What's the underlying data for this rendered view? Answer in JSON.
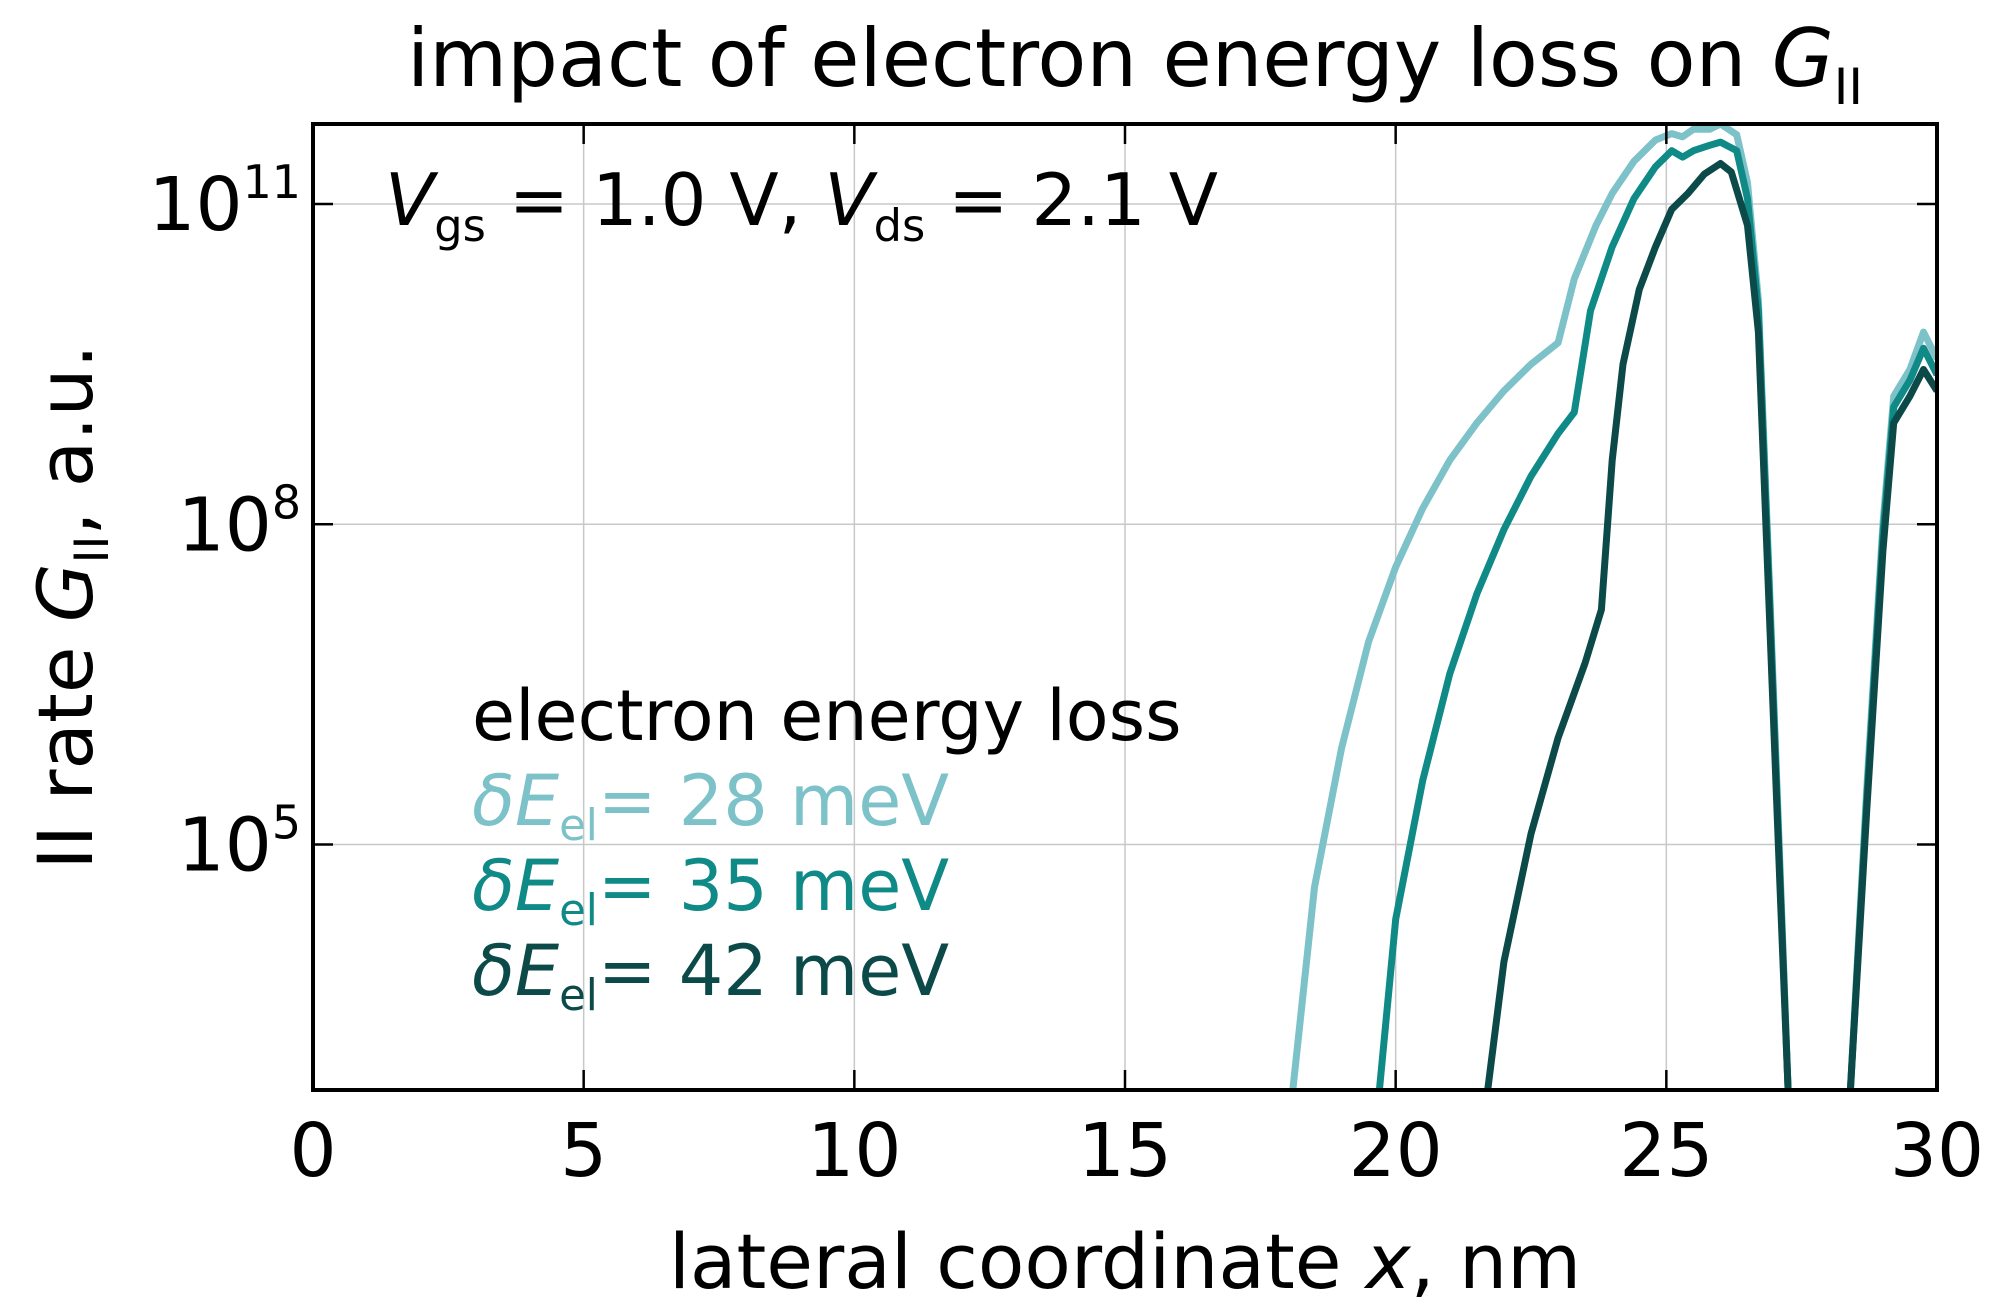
{
  "chart_data": {
    "type": "line",
    "title": {
      "prefix": "impact of electron energy loss on ",
      "symbol": "G",
      "symbol_sub": "II"
    },
    "annotation": {
      "vgs_symbol": "V",
      "vgs_sub": "gs",
      "vgs_value": " = 1.0 V, ",
      "vds_symbol": "V",
      "vds_sub": "ds",
      "vds_value": " = 2.1 V"
    },
    "xlabel": {
      "prefix": "lateral coordinate ",
      "symbol": "x",
      "suffix": ", nm"
    },
    "ylabel": {
      "prefix": "II rate ",
      "symbol": "G",
      "symbol_sub": "II",
      "suffix": ", a.u."
    },
    "x_scale": "linear",
    "y_scale": "log",
    "xlim": [
      0,
      30
    ],
    "ylim_log10": [
      2.7,
      11.75
    ],
    "x_ticks": [
      0,
      5,
      10,
      15,
      20,
      25,
      30
    ],
    "x_tick_labels": [
      "0",
      "5",
      "10",
      "15",
      "20",
      "25",
      "30"
    ],
    "y_ticks_log10": [
      5,
      8,
      11
    ],
    "y_tick_labels": [
      {
        "base": "10",
        "exp": "5"
      },
      {
        "base": "10",
        "exp": "8"
      },
      {
        "base": "10",
        "exp": "11"
      }
    ],
    "grid": true,
    "legend": {
      "title": "electron energy loss",
      "placement": "lower-left"
    },
    "series": [
      {
        "name": "δE_el = 28 meV",
        "label_symbol": "δE",
        "label_sub": "el",
        "label_value": "= 28 meV",
        "color": "#7cc2c8",
        "segments": [
          [
            [
              18.1,
              2.7
            ],
            [
              18.5,
              4.6
            ],
            [
              19,
              5.9
            ],
            [
              19.5,
              6.9
            ],
            [
              20,
              7.6
            ],
            [
              20.5,
              8.15
            ],
            [
              21,
              8.6
            ],
            [
              21.5,
              8.95
            ],
            [
              22,
              9.25
            ],
            [
              22.5,
              9.5
            ],
            [
              23,
              9.7
            ],
            [
              23.3,
              10.3
            ],
            [
              23.7,
              10.8
            ],
            [
              24,
              11.1
            ],
            [
              24.4,
              11.4
            ],
            [
              24.8,
              11.6
            ],
            [
              25.1,
              11.66
            ],
            [
              25.3,
              11.63
            ],
            [
              25.5,
              11.7
            ],
            [
              25.8,
              11.7
            ],
            [
              26,
              11.75
            ],
            [
              26.3,
              11.65
            ],
            [
              26.5,
              11.2
            ],
            [
              26.7,
              10.1
            ],
            [
              26.9,
              7.5
            ],
            [
              27.1,
              4.8
            ],
            [
              27.25,
              2.7
            ]
          ],
          [
            [
              28.4,
              2.7
            ],
            [
              28.7,
              5.5
            ],
            [
              29,
              8.0
            ],
            [
              29.2,
              9.2
            ],
            [
              29.5,
              9.45
            ],
            [
              29.75,
              9.8
            ],
            [
              30,
              9.55
            ]
          ]
        ]
      },
      {
        "name": "δE_el = 35 meV",
        "label_symbol": "δE",
        "label_sub": "el",
        "label_value": "= 35 meV",
        "color": "#0f8a87",
        "segments": [
          [
            [
              19.7,
              2.7
            ],
            [
              20,
              4.3
            ],
            [
              20.5,
              5.6
            ],
            [
              21,
              6.6
            ],
            [
              21.5,
              7.35
            ],
            [
              22,
              7.95
            ],
            [
              22.5,
              8.45
            ],
            [
              23,
              8.85
            ],
            [
              23.3,
              9.05
            ],
            [
              23.6,
              10.0
            ],
            [
              24,
              10.6
            ],
            [
              24.4,
              11.05
            ],
            [
              24.8,
              11.35
            ],
            [
              25.1,
              11.5
            ],
            [
              25.3,
              11.44
            ],
            [
              25.5,
              11.5
            ],
            [
              25.8,
              11.55
            ],
            [
              26,
              11.58
            ],
            [
              26.3,
              11.5
            ],
            [
              26.5,
              11.05
            ],
            [
              26.7,
              10.0
            ],
            [
              26.9,
              7.4
            ],
            [
              27.1,
              4.7
            ],
            [
              27.25,
              2.7
            ]
          ],
          [
            [
              28.4,
              2.7
            ],
            [
              28.7,
              5.4
            ],
            [
              29,
              7.9
            ],
            [
              29.2,
              9.1
            ],
            [
              29.5,
              9.35
            ],
            [
              29.75,
              9.65
            ],
            [
              30,
              9.4
            ]
          ]
        ]
      },
      {
        "name": "δE_el = 42 meV",
        "label_symbol": "δE",
        "label_sub": "el",
        "label_value": "= 42 meV",
        "color": "#0c4a4a",
        "segments": [
          [
            [
              21.7,
              2.7
            ],
            [
              22,
              3.9
            ],
            [
              22.5,
              5.1
            ],
            [
              23,
              6.0
            ],
            [
              23.5,
              6.7
            ],
            [
              23.8,
              7.2
            ],
            [
              24,
              8.6
            ],
            [
              24.2,
              9.5
            ],
            [
              24.5,
              10.2
            ],
            [
              24.8,
              10.6
            ],
            [
              25.1,
              10.95
            ],
            [
              25.4,
              11.1
            ],
            [
              25.7,
              11.28
            ],
            [
              26,
              11.38
            ],
            [
              26.2,
              11.3
            ],
            [
              26.5,
              10.8
            ],
            [
              26.7,
              9.8
            ],
            [
              26.9,
              7.2
            ],
            [
              27.1,
              4.6
            ],
            [
              27.25,
              2.7
            ]
          ],
          [
            [
              28.4,
              2.7
            ],
            [
              28.7,
              5.3
            ],
            [
              29,
              7.75
            ],
            [
              29.2,
              8.95
            ],
            [
              29.5,
              9.2
            ],
            [
              29.75,
              9.45
            ],
            [
              30,
              9.25
            ]
          ]
        ]
      }
    ]
  }
}
